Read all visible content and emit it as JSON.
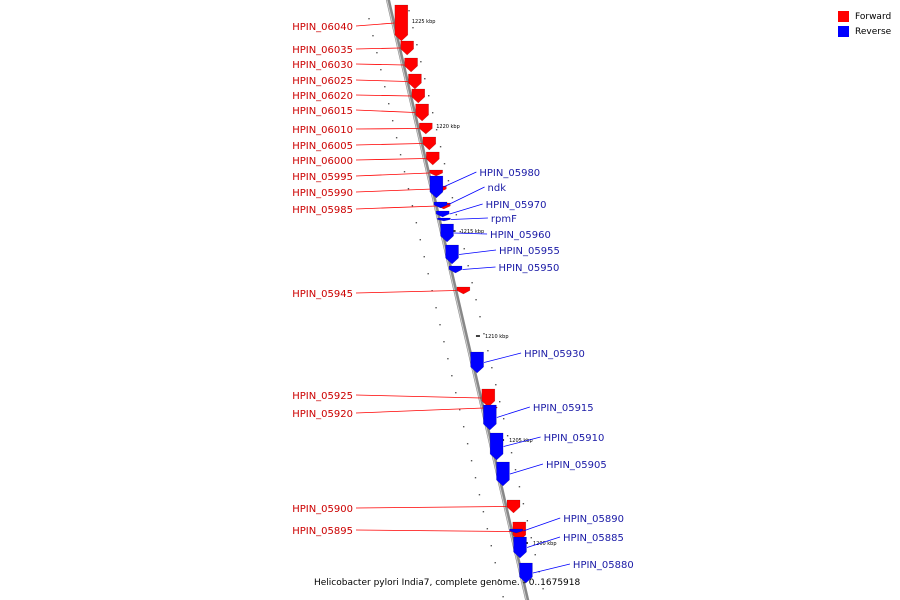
{
  "caption": "Helicobacter pylori India7, complete genome. - 0..1675918",
  "colors": {
    "forward": "#ff0000",
    "reverse": "#0000ff",
    "forward_label": "#cc0000",
    "reverse_label": "#1a1aa6",
    "backbone": "#888888"
  },
  "legend": [
    {
      "label": "Forward",
      "color": "#ff0000"
    },
    {
      "label": "Reverse",
      "color": "#0000ff"
    }
  ],
  "ticks": [
    "1225 kbp",
    "1220 kbp",
    "1215 kbp",
    "1210 kbp",
    "1205 kbp",
    "1200 kbp"
  ],
  "forward_genes": [
    "HPIN_06040",
    "HPIN_06035",
    "HPIN_06030",
    "HPIN_06025",
    "HPIN_06020",
    "HPIN_06015",
    "HPIN_06010",
    "HPIN_06005",
    "HPIN_06000",
    "HPIN_05995",
    "HPIN_05990",
    "HPIN_05985",
    "HPIN_05945",
    "HPIN_05925",
    "HPIN_05920",
    "HPIN_05900",
    "HPIN_05895"
  ],
  "reverse_genes": [
    "HPIN_05980",
    "ndk",
    "HPIN_05970",
    "rpmF",
    "HPIN_05960",
    "HPIN_05955",
    "HPIN_05950",
    "HPIN_05930",
    "HPIN_05915",
    "HPIN_05910",
    "HPIN_05905",
    "HPIN_05890",
    "HPIN_05885",
    "HPIN_05880"
  ]
}
